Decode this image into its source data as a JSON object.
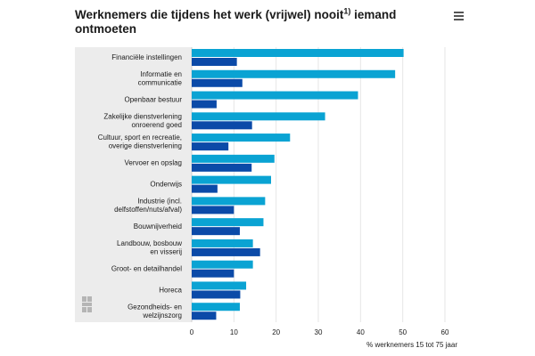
{
  "chart_data": {
    "type": "bar",
    "orientation": "horizontal",
    "title_main": "Werknemers die tijdens het werk (vrijwel) nooit",
    "title_sup": "1)",
    "title_rest": " iemand ontmoeten",
    "xlabel": "% werknemers 15 tot 75 jaar",
    "xlim": [
      0,
      60
    ],
    "xticks": [
      0,
      10,
      20,
      30,
      40,
      50,
      60
    ],
    "categories": [
      [
        "Financiële instellingen"
      ],
      [
        "Informatie en",
        "communicatie"
      ],
      [
        "Openbaar bestuur"
      ],
      [
        "Zakelijke dienstverlening",
        "onroerend goed"
      ],
      [
        "Cultuur, sport en recreatie,",
        "overige dienstverlening"
      ],
      [
        "Vervoer en opslag"
      ],
      [
        "Onderwijs"
      ],
      [
        "Industrie (incl.",
        "delfstoffen/nuts/afval)"
      ],
      [
        "Bouwnijverheid"
      ],
      [
        "Landbouw, bosbouw",
        "en visserij"
      ],
      [
        "Groot- en detailhandel"
      ],
      [
        "Horeca"
      ],
      [
        "Gezondheids- en",
        "welzijnszorg"
      ]
    ],
    "series": [
      {
        "color": "#0aa3d3",
        "values": [
          50.2,
          48.2,
          39.4,
          31.6,
          23.3,
          19.6,
          18.8,
          17.4,
          17.0,
          14.5,
          14.5,
          12.9,
          11.4
        ]
      },
      {
        "color": "#0b4aa8",
        "values": [
          10.7,
          12.0,
          5.9,
          14.3,
          8.7,
          14.2,
          6.1,
          10.0,
          11.4,
          16.2,
          10.0,
          11.5,
          5.8
        ]
      }
    ],
    "grid": true,
    "legend": "none"
  }
}
